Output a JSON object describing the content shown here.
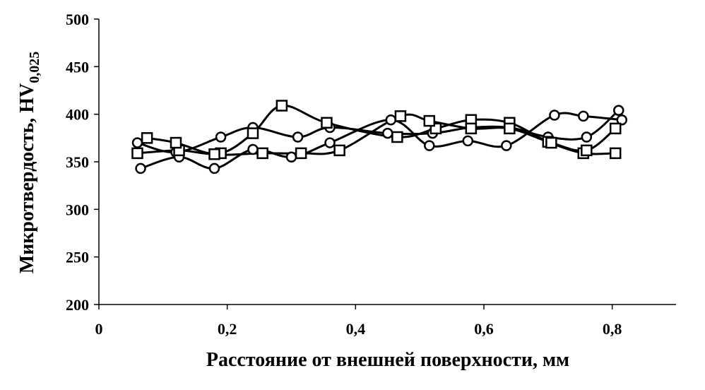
{
  "chart_data": {
    "type": "line",
    "xlabel": "Расстояние от внешней поверхности, мм",
    "ylabel_main": "Микротвердость, HV",
    "ylabel_sub": "0,025",
    "xlim": [
      0,
      0.9
    ],
    "ylim": [
      200,
      500
    ],
    "x_ticks": [
      0,
      0.2,
      0.4,
      0.6,
      0.8
    ],
    "x_tick_labels": [
      "0",
      "0,2",
      "0,4",
      "0,6",
      "0,8"
    ],
    "y_ticks": [
      200,
      250,
      300,
      350,
      400,
      450,
      500
    ],
    "y_tick_labels": [
      "200",
      "250",
      "300",
      "350",
      "400",
      "450",
      "500"
    ],
    "grid": false,
    "line_color": "#000000",
    "series": [
      {
        "marker": "circle",
        "x": [
          0.06,
          0.12,
          0.19,
          0.24,
          0.31,
          0.36,
          0.45,
          0.52,
          0.58,
          0.64,
          0.7,
          0.76,
          0.81
        ],
        "y": [
          370,
          360,
          376,
          386,
          376,
          386,
          380,
          380,
          386,
          386,
          376,
          376,
          404
        ]
      },
      {
        "marker": "circle",
        "x": [
          0.065,
          0.125,
          0.18,
          0.24,
          0.3,
          0.36,
          0.455,
          0.515,
          0.575,
          0.635,
          0.71,
          0.755,
          0.815
        ],
        "y": [
          343,
          355,
          343,
          363,
          355,
          370,
          394,
          367,
          372,
          367,
          399,
          398,
          394
        ]
      },
      {
        "marker": "square",
        "x": [
          0.06,
          0.125,
          0.19,
          0.24,
          0.285,
          0.355,
          0.465,
          0.525,
          0.58,
          0.64,
          0.7,
          0.755,
          0.805
        ],
        "y": [
          359,
          362,
          359,
          380,
          409,
          391,
          376,
          385,
          394,
          391,
          371,
          359,
          359
        ]
      },
      {
        "marker": "square",
        "x": [
          0.075,
          0.12,
          0.18,
          0.255,
          0.315,
          0.375,
          0.47,
          0.515,
          0.58,
          0.64,
          0.705,
          0.76,
          0.805
        ],
        "y": [
          375,
          370,
          358,
          359,
          359,
          362,
          398,
          393,
          385,
          385,
          370,
          362,
          385
        ]
      }
    ]
  }
}
